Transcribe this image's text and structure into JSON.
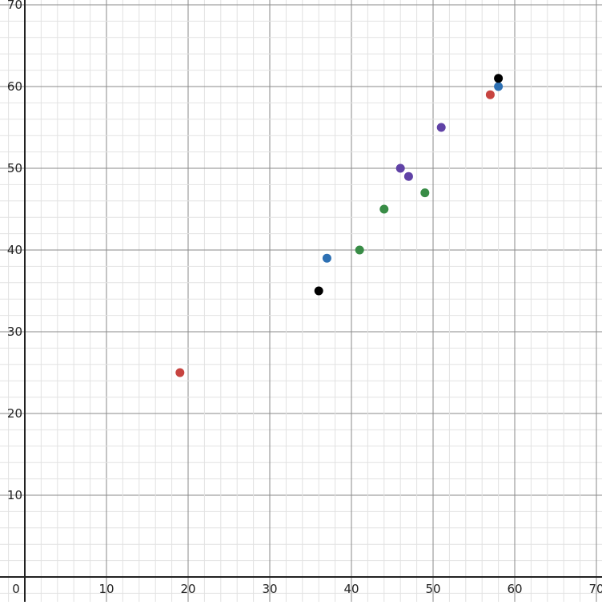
{
  "chart_data": {
    "type": "scatter",
    "title": "",
    "xlabel": "",
    "ylabel": "",
    "xlim": [
      -3,
      70.7
    ],
    "ylim": [
      -3,
      70.6
    ],
    "grid": true,
    "grid_major_step": 10,
    "grid_minor_step": 2,
    "x_ticks": [
      "10",
      "20",
      "30",
      "40",
      "50",
      "60",
      "70"
    ],
    "y_ticks": [
      "10",
      "20",
      "30",
      "40",
      "50",
      "60",
      "70"
    ],
    "origin_label": "0",
    "series": [
      {
        "color": "#c74440",
        "points": [
          [
            19,
            25
          ],
          [
            57,
            59
          ]
        ]
      },
      {
        "color": "#2d70b3",
        "points": [
          [
            37,
            39
          ],
          [
            58,
            60
          ]
        ]
      },
      {
        "color": "#000000",
        "points": [
          [
            36,
            35
          ],
          [
            58,
            61
          ]
        ]
      },
      {
        "color": "#388c46",
        "points": [
          [
            41,
            40
          ],
          [
            44,
            45
          ],
          [
            49,
            47
          ]
        ]
      },
      {
        "color": "#6042a6",
        "points": [
          [
            46,
            50
          ],
          [
            47,
            49
          ],
          [
            51,
            55
          ]
        ]
      }
    ]
  }
}
